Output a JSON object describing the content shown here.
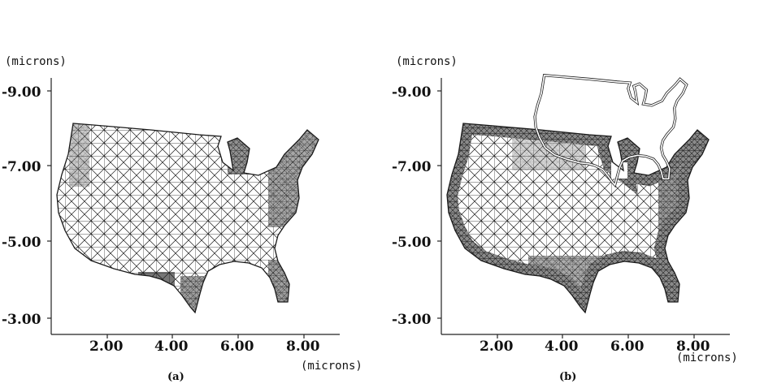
{
  "figure": {
    "panels": [
      {
        "id": "a",
        "caption": "(a)",
        "y_unit_label": "(microns)",
        "x_unit_label": "(microns)",
        "y_ticks": [
          "-9.00",
          "-7.00",
          "-5.00",
          "-3.00"
        ],
        "x_ticks": [
          "2.00",
          "4.00",
          "6.00",
          "8.00"
        ],
        "mesh_refinement": "uniform"
      },
      {
        "id": "b",
        "caption": "(b)",
        "y_unit_label": "(microns)",
        "x_unit_label": "(microns)",
        "y_ticks": [
          "-9.00",
          "-7.00",
          "-5.00",
          "-3.00"
        ],
        "x_ticks": [
          "2.00",
          "4.00",
          "6.00",
          "8.00"
        ],
        "mesh_refinement": "boundary-refined",
        "inset": "outline-of-domain"
      }
    ],
    "colors": {
      "mesh": "#1a1a1a",
      "background": "#ffffff",
      "dense_fill": "#6b6b6b"
    }
  }
}
